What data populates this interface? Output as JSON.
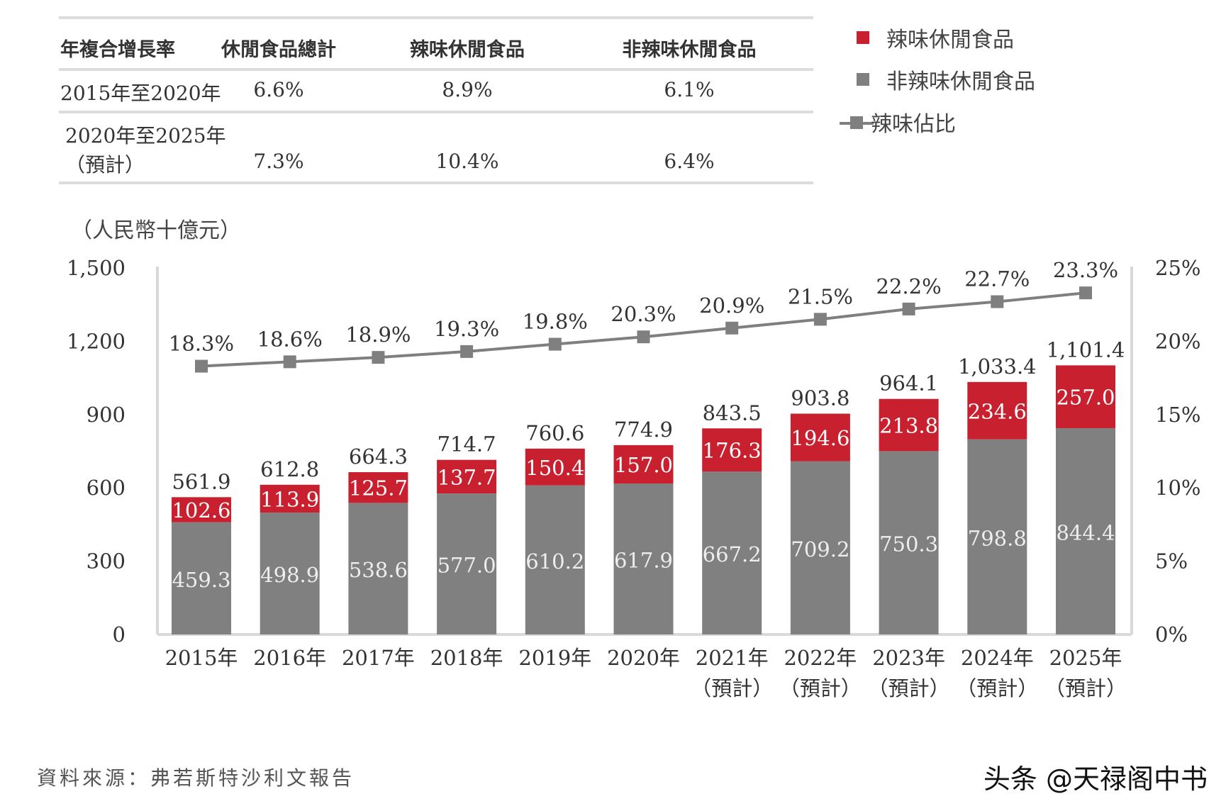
{
  "cagr_table": {
    "headers": [
      "年複合增長率",
      "休閒食品總計",
      "辣味休閒食品",
      "非辣味休閒食品"
    ],
    "rows": [
      {
        "period": [
          "2015年至2020年"
        ],
        "total": "6.6%",
        "spicy": "8.9%",
        "non_spicy": "6.1%"
      },
      {
        "period": [
          "2020年至2025年",
          "（預計）"
        ],
        "total": "7.3%",
        "spicy": "10.4%",
        "non_spicy": "6.4%"
      }
    ]
  },
  "legend": {
    "spicy": "辣味休閒食品",
    "non_spicy": "非辣味休閒食品",
    "share": "辣味佔比"
  },
  "unit_label": "（人民幣十億元）",
  "source": "資料來源：弗若斯特沙利文報告",
  "watermark": "头条 @天禄阁中书",
  "colors": {
    "spicy": "#c8202f",
    "non_spicy": "#808080",
    "share_line": "#7f7f7f",
    "axis": "#d9d9d9"
  },
  "chart_data": {
    "type": "bar",
    "stacked": true,
    "categories": [
      [
        "2015年"
      ],
      [
        "2016年"
      ],
      [
        "2017年"
      ],
      [
        "2018年"
      ],
      [
        "2019年"
      ],
      [
        "2020年"
      ],
      [
        "2021年",
        "（預計）"
      ],
      [
        "2022年",
        "（預計）"
      ],
      [
        "2023年",
        "（預計）"
      ],
      [
        "2024年",
        "（預計）"
      ],
      [
        "2025年",
        "（預計）"
      ]
    ],
    "series": [
      {
        "name": "非辣味休閒食品",
        "color": "#808080",
        "values": [
          459.3,
          498.9,
          538.6,
          577.0,
          610.2,
          617.9,
          667.2,
          709.2,
          750.3,
          798.8,
          844.4
        ],
        "labels": [
          "459.3",
          "498.9",
          "538.6",
          "577.0",
          "610.2",
          "617.9",
          "667.2",
          "709.2",
          "750.3",
          "798.8",
          "844.4"
        ]
      },
      {
        "name": "辣味休閒食品",
        "color": "#c8202f",
        "values": [
          102.6,
          113.9,
          125.7,
          137.7,
          150.4,
          157.0,
          176.3,
          194.6,
          213.8,
          234.6,
          257.0
        ],
        "labels": [
          "102.6",
          "113.9",
          "125.7",
          "137.7",
          "150.4",
          "157.0",
          "176.3",
          "194.6",
          "213.8",
          "234.6",
          "257.0"
        ]
      }
    ],
    "totals": [
      561.9,
      612.8,
      664.3,
      714.7,
      760.6,
      774.9,
      843.5,
      903.8,
      964.1,
      1033.4,
      1101.4
    ],
    "total_labels": [
      "561.9",
      "612.8",
      "664.3",
      "714.7",
      "760.6",
      "774.9",
      "843.5",
      "903.8",
      "964.1",
      "1,033.4",
      "1,101.4"
    ],
    "line_series": {
      "name": "辣味佔比",
      "axis": "right",
      "values": [
        18.3,
        18.6,
        18.9,
        19.3,
        19.8,
        20.3,
        20.9,
        21.5,
        22.2,
        22.7,
        23.3
      ],
      "labels": [
        "18.3%",
        "18.6%",
        "18.9%",
        "19.3%",
        "19.8%",
        "20.3%",
        "20.9%",
        "21.5%",
        "22.2%",
        "22.7%",
        "23.3%"
      ]
    },
    "ylim": [
      0,
      1500
    ],
    "yticks": [
      "0",
      "300",
      "600",
      "900",
      "1,200",
      "1,500"
    ],
    "y2lim": [
      0,
      25
    ],
    "y2ticks": [
      "0%",
      "5%",
      "10%",
      "15%",
      "20%",
      "25%"
    ],
    "grid": false,
    "legend_position": "top-right"
  }
}
